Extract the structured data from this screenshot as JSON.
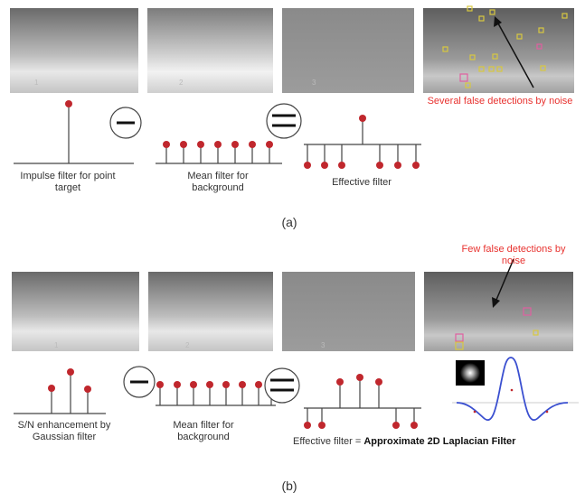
{
  "row_a": {
    "caption": "(a)",
    "impulse_label": "Impulse filter for point target",
    "mean_label": "Mean filter for background",
    "effective_label": "Effective filter",
    "note": "Several false detections by noise",
    "panel_marks": [
      "1",
      "2",
      "3"
    ]
  },
  "row_b": {
    "caption": "(b)",
    "gauss_label": "S/N enhancement by Gaussian filter",
    "mean_label": "Mean filter for background",
    "effective_prefix": "Effective filter = ",
    "effective_bold": "Approximate 2D Laplacian Filter",
    "note": "Few false detections by noise",
    "panel_marks": [
      "1",
      "2",
      "3"
    ]
  },
  "colors": {
    "stem_red": "#c0272d",
    "note_red": "#e8322f",
    "detect_yellow": "#d8c840",
    "detect_pink": "#e060a0",
    "curve_blue": "#3a4fd0"
  }
}
